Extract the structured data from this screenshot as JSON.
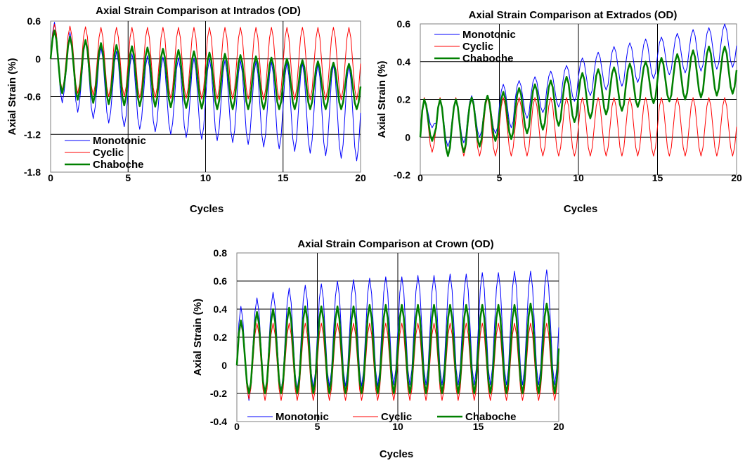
{
  "chart_data": [
    {
      "type": "line",
      "title": "Axial Strain Comparison at Intrados (OD)",
      "xlabel": "Cycles",
      "ylabel": "Axial Strain (%)",
      "xlim": [
        0,
        20
      ],
      "ylim": [
        -1.8,
        0.6
      ],
      "xticks": [
        "0",
        "5",
        "10",
        "15",
        "20"
      ],
      "yticks": [
        "0.6",
        "0",
        "-0.6",
        "-1.2",
        "-1.8"
      ],
      "grid": true,
      "legend": "bottom-left",
      "series": [
        {
          "name": "Monotonic",
          "color": "#0000ff",
          "width": 1,
          "peaks": [
            0.58,
            0.42,
            0.28,
            0.18,
            0.12,
            0.08,
            0.05,
            0.03,
            0.02,
            0.01,
            0.0,
            -0.02,
            -0.03,
            -0.04,
            -0.05,
            -0.06,
            -0.07,
            -0.08,
            -0.09,
            -0.1
          ],
          "troughs": [
            -0.7,
            -0.85,
            -0.95,
            -1.02,
            -1.08,
            -1.12,
            -1.16,
            -1.2,
            -1.25,
            -1.28,
            -1.3,
            -1.33,
            -1.36,
            -1.4,
            -1.43,
            -1.47,
            -1.5,
            -1.54,
            -1.58,
            -1.62
          ]
        },
        {
          "name": "Cyclic",
          "color": "#ff0000",
          "width": 1,
          "peaks": [
            0.55,
            0.52,
            0.51,
            0.5,
            0.5,
            0.5,
            0.5,
            0.5,
            0.5,
            0.5,
            0.5,
            0.5,
            0.5,
            0.5,
            0.5,
            0.5,
            0.5,
            0.5,
            0.5,
            0.5
          ],
          "troughs": [
            -0.5,
            -0.55,
            -0.58,
            -0.6,
            -0.6,
            -0.62,
            -0.62,
            -0.63,
            -0.63,
            -0.64,
            -0.64,
            -0.64,
            -0.64,
            -0.65,
            -0.65,
            -0.65,
            -0.65,
            -0.65,
            -0.65,
            -0.65
          ]
        },
        {
          "name": "Chaboche",
          "color": "#008000",
          "width": 2.5,
          "peaks": [
            0.45,
            0.35,
            0.3,
            0.25,
            0.22,
            0.2,
            0.18,
            0.16,
            0.14,
            0.12,
            0.1,
            0.08,
            0.06,
            0.04,
            0.02,
            0.0,
            -0.02,
            -0.04,
            -0.06,
            -0.08
          ],
          "troughs": [
            -0.55,
            -0.65,
            -0.7,
            -0.72,
            -0.74,
            -0.75,
            -0.76,
            -0.77,
            -0.78,
            -0.79,
            -0.8,
            -0.8,
            -0.8,
            -0.8,
            -0.8,
            -0.8,
            -0.8,
            -0.8,
            -0.8,
            -0.8
          ]
        }
      ]
    },
    {
      "type": "line",
      "title": "Axial Strain Comparison at Extrados (OD)",
      "xlabel": "Cycles",
      "ylabel": "Axial Strain (%)",
      "xlim": [
        0,
        20
      ],
      "ylim": [
        -0.2,
        0.6
      ],
      "xticks": [
        "0",
        "5",
        "10",
        "15",
        "20"
      ],
      "yticks": [
        "0.6",
        "0.4",
        "0.2",
        "0",
        "-0.2"
      ],
      "grid": true,
      "legend": "top-left",
      "series": [
        {
          "name": "Monotonic",
          "color": "#0000ff",
          "width": 1,
          "peaks": [
            0.2,
            0.2,
            0.2,
            0.22,
            0.22,
            0.28,
            0.3,
            0.32,
            0.35,
            0.38,
            0.42,
            0.45,
            0.48,
            0.5,
            0.52,
            0.53,
            0.55,
            0.57,
            0.58,
            0.6
          ],
          "troughs": [
            0.05,
            -0.05,
            -0.03,
            0.0,
            0.02,
            0.05,
            0.1,
            0.13,
            0.16,
            0.19,
            0.22,
            0.25,
            0.27,
            0.29,
            0.31,
            0.33,
            0.34,
            0.35,
            0.36,
            0.37
          ]
        },
        {
          "name": "Cyclic",
          "color": "#ff0000",
          "width": 1,
          "peaks": [
            0.21,
            0.21,
            0.21,
            0.21,
            0.21,
            0.21,
            0.21,
            0.21,
            0.21,
            0.21,
            0.21,
            0.21,
            0.21,
            0.21,
            0.21,
            0.21,
            0.21,
            0.21,
            0.21,
            0.21
          ],
          "troughs": [
            -0.08,
            -0.1,
            -0.1,
            -0.1,
            -0.1,
            -0.1,
            -0.1,
            -0.1,
            -0.1,
            -0.1,
            -0.1,
            -0.1,
            -0.1,
            -0.1,
            -0.1,
            -0.1,
            -0.1,
            -0.1,
            -0.1,
            -0.1
          ]
        },
        {
          "name": "Chaboche",
          "color": "#008000",
          "width": 2.5,
          "peaks": [
            0.2,
            0.2,
            0.2,
            0.21,
            0.22,
            0.24,
            0.26,
            0.28,
            0.3,
            0.32,
            0.34,
            0.36,
            0.37,
            0.39,
            0.4,
            0.42,
            0.44,
            0.46,
            0.48,
            0.48
          ],
          "troughs": [
            -0.02,
            -0.1,
            -0.08,
            -0.05,
            -0.02,
            -0.01,
            0.02,
            0.04,
            0.06,
            0.08,
            0.1,
            0.12,
            0.14,
            0.16,
            0.18,
            0.19,
            0.2,
            0.21,
            0.22,
            0.23
          ]
        }
      ]
    },
    {
      "type": "line",
      "title": "Axial Strain Comparison at Crown (OD)",
      "xlabel": "Cycles",
      "ylabel": "Axial Strain (%)",
      "xlim": [
        0,
        20
      ],
      "ylim": [
        -0.4,
        0.8
      ],
      "xticks": [
        "0",
        "5",
        "10",
        "15",
        "20"
      ],
      "yticks": [
        "0.8",
        "0.6",
        "0.4",
        "0.2",
        "0",
        "-0.2",
        "-0.4"
      ],
      "grid": true,
      "legend": "bottom",
      "series": [
        {
          "name": "Monotonic",
          "color": "#0000ff",
          "width": 1,
          "peaks": [
            0.42,
            0.48,
            0.52,
            0.55,
            0.57,
            0.58,
            0.6,
            0.61,
            0.62,
            0.63,
            0.63,
            0.64,
            0.64,
            0.65,
            0.65,
            0.66,
            0.66,
            0.67,
            0.67,
            0.68
          ],
          "troughs": [
            -0.25,
            -0.2,
            -0.18,
            -0.17,
            -0.16,
            -0.15,
            -0.15,
            -0.15,
            -0.15,
            -0.14,
            -0.14,
            -0.14,
            -0.14,
            -0.14,
            -0.14,
            -0.14,
            -0.14,
            -0.14,
            -0.14,
            -0.14
          ]
        },
        {
          "name": "Cyclic",
          "color": "#ff0000",
          "width": 1,
          "peaks": [
            0.3,
            0.3,
            0.3,
            0.3,
            0.3,
            0.3,
            0.3,
            0.3,
            0.3,
            0.3,
            0.3,
            0.3,
            0.3,
            0.3,
            0.3,
            0.3,
            0.3,
            0.3,
            0.3,
            0.3
          ],
          "troughs": [
            -0.24,
            -0.25,
            -0.25,
            -0.25,
            -0.25,
            -0.25,
            -0.25,
            -0.25,
            -0.25,
            -0.25,
            -0.25,
            -0.25,
            -0.25,
            -0.25,
            -0.25,
            -0.25,
            -0.25,
            -0.25,
            -0.25,
            -0.25
          ]
        },
        {
          "name": "Chaboche",
          "color": "#008000",
          "width": 2.5,
          "peaks": [
            0.32,
            0.38,
            0.4,
            0.41,
            0.42,
            0.42,
            0.42,
            0.42,
            0.43,
            0.43,
            0.43,
            0.43,
            0.43,
            0.43,
            0.43,
            0.43,
            0.43,
            0.43,
            0.44,
            0.44
          ],
          "troughs": [
            -0.2,
            -0.2,
            -0.2,
            -0.2,
            -0.2,
            -0.2,
            -0.2,
            -0.2,
            -0.2,
            -0.2,
            -0.2,
            -0.2,
            -0.2,
            -0.2,
            -0.2,
            -0.2,
            -0.2,
            -0.2,
            -0.2,
            -0.2
          ]
        }
      ]
    }
  ]
}
